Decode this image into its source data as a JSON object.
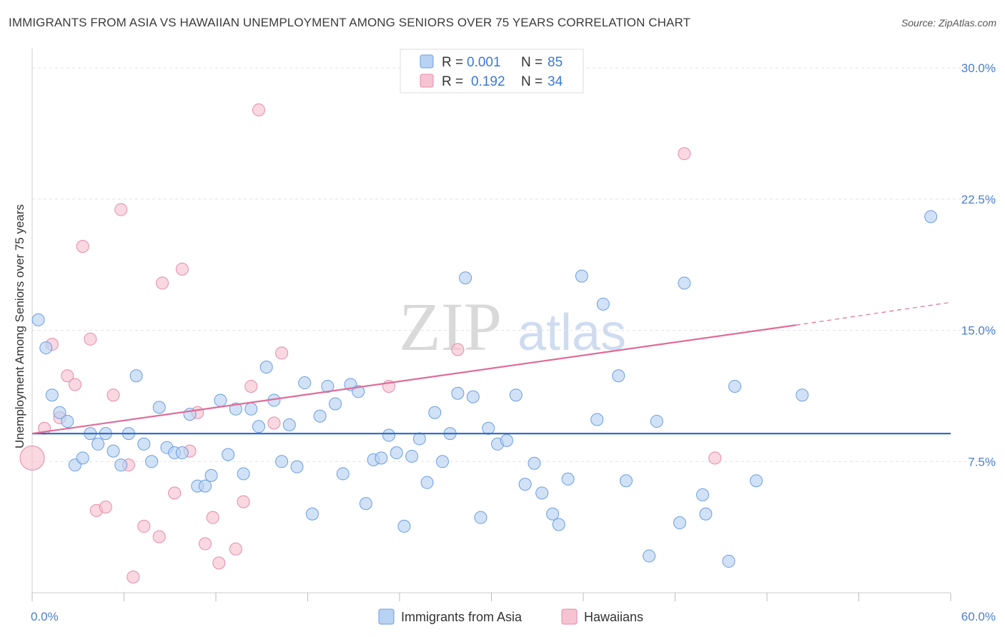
{
  "title": "IMMIGRANTS FROM ASIA VS HAWAIIAN UNEMPLOYMENT AMONG SENIORS OVER 75 YEARS CORRELATION CHART",
  "source": "Source: ZipAtlas.com",
  "watermark": {
    "zip": "ZIP",
    "atlas": "atlas"
  },
  "colors": {
    "blue_fill": "#b8d2f3",
    "blue_stroke": "#6b9de0",
    "blue_line": "#2f6fd0",
    "pink_fill": "#f6c3d3",
    "pink_stroke": "#e58aa9",
    "pink_line": "#e06b98",
    "tick_text": "#4a7fcf",
    "grid": "#e0e0e0"
  },
  "legend": {
    "row1": {
      "r_label": "R =",
      "r_value": "0.001",
      "n_label": "N =",
      "n_value": "85"
    },
    "row2": {
      "r_label": "R =",
      "r_value": "0.192",
      "n_label": "N =",
      "n_value": "34"
    }
  },
  "chart_data": {
    "type": "scatter",
    "title": "IMMIGRANTS FROM ASIA VS HAWAIIAN UNEMPLOYMENT AMONG SENIORS OVER 75 YEARS CORRELATION CHART",
    "xlabel": "",
    "ylabel": "Unemployment Among Seniors over 75 years",
    "xlim": [
      0,
      60
    ],
    "ylim": [
      0,
      30.7
    ],
    "x_tick_labels": [
      {
        "value": 0,
        "label": "0.0%"
      },
      {
        "value": 60,
        "label": "60.0%"
      }
    ],
    "y_tick_labels": [
      {
        "value": 7.5,
        "label": "7.5%"
      },
      {
        "value": 15.0,
        "label": "15.0%"
      },
      {
        "value": 22.5,
        "label": "22.5%"
      },
      {
        "value": 30.0,
        "label": "30.0%"
      }
    ],
    "x_minor_ticks": [
      0,
      6,
      12,
      18,
      24,
      30,
      36,
      42,
      48,
      54,
      60
    ],
    "legend_placement": "top-center",
    "series": [
      {
        "name": "Immigrants from Asia",
        "color": "blue",
        "R": 0.001,
        "N": 85,
        "trend": {
          "x0": 0,
          "y0": 9.1,
          "x1": 60,
          "y1": 9.1
        },
        "points": [
          [
            0.4,
            15.6
          ],
          [
            0.9,
            14.0
          ],
          [
            1.3,
            11.3
          ],
          [
            1.8,
            10.3
          ],
          [
            2.3,
            9.8
          ],
          [
            2.8,
            7.3
          ],
          [
            3.3,
            7.7
          ],
          [
            3.8,
            9.1
          ],
          [
            4.3,
            8.5
          ],
          [
            4.8,
            9.1
          ],
          [
            5.3,
            8.1
          ],
          [
            5.8,
            7.3
          ],
          [
            6.3,
            9.1
          ],
          [
            6.8,
            12.4
          ],
          [
            7.3,
            8.5
          ],
          [
            7.8,
            7.5
          ],
          [
            8.3,
            10.6
          ],
          [
            8.8,
            8.3
          ],
          [
            9.3,
            8.0
          ],
          [
            9.8,
            8.0
          ],
          [
            10.3,
            10.2
          ],
          [
            10.8,
            6.1
          ],
          [
            11.3,
            6.1
          ],
          [
            11.7,
            6.7
          ],
          [
            12.3,
            11.0
          ],
          [
            12.8,
            7.9
          ],
          [
            13.3,
            10.5
          ],
          [
            13.8,
            6.8
          ],
          [
            14.3,
            10.5
          ],
          [
            14.8,
            9.5
          ],
          [
            15.3,
            12.9
          ],
          [
            15.8,
            11.0
          ],
          [
            16.3,
            7.5
          ],
          [
            16.8,
            9.6
          ],
          [
            17.3,
            7.2
          ],
          [
            17.8,
            12.0
          ],
          [
            18.3,
            4.5
          ],
          [
            18.8,
            10.1
          ],
          [
            19.3,
            11.8
          ],
          [
            19.8,
            10.8
          ],
          [
            20.3,
            6.8
          ],
          [
            20.8,
            11.9
          ],
          [
            21.3,
            11.5
          ],
          [
            21.8,
            5.1
          ],
          [
            22.3,
            7.6
          ],
          [
            22.8,
            7.7
          ],
          [
            23.3,
            9.0
          ],
          [
            23.8,
            8.0
          ],
          [
            24.3,
            3.8
          ],
          [
            24.8,
            7.8
          ],
          [
            25.3,
            8.8
          ],
          [
            25.8,
            6.3
          ],
          [
            26.3,
            10.3
          ],
          [
            26.8,
            7.5
          ],
          [
            27.3,
            9.1
          ],
          [
            27.8,
            11.4
          ],
          [
            28.3,
            18.0
          ],
          [
            28.8,
            11.2
          ],
          [
            29.3,
            4.3
          ],
          [
            29.8,
            9.4
          ],
          [
            30.4,
            8.5
          ],
          [
            31.0,
            8.7
          ],
          [
            31.6,
            11.3
          ],
          [
            32.2,
            6.2
          ],
          [
            32.8,
            7.4
          ],
          [
            33.3,
            5.7
          ],
          [
            34.0,
            4.5
          ],
          [
            34.4,
            3.9
          ],
          [
            35.0,
            6.5
          ],
          [
            35.9,
            18.1
          ],
          [
            36.9,
            9.9
          ],
          [
            37.3,
            16.5
          ],
          [
            38.3,
            12.4
          ],
          [
            38.8,
            6.4
          ],
          [
            40.3,
            2.1
          ],
          [
            40.8,
            9.8
          ],
          [
            42.3,
            4.0
          ],
          [
            42.6,
            17.7
          ],
          [
            43.8,
            5.6
          ],
          [
            44.0,
            4.5
          ],
          [
            45.5,
            1.8
          ],
          [
            45.9,
            11.8
          ],
          [
            47.3,
            6.4
          ],
          [
            50.3,
            11.3
          ],
          [
            58.7,
            21.5
          ]
        ]
      },
      {
        "name": "Hawaiians",
        "color": "pink",
        "R": 0.192,
        "N": 34,
        "trend": {
          "x0": 0,
          "y0": 9.1,
          "x1": 49.9,
          "y1": 15.3,
          "dash_to_x": 60,
          "dash_to_y": 16.6
        },
        "points": [
          [
            0.0,
            7.7
          ],
          [
            0.8,
            9.4
          ],
          [
            1.3,
            14.2
          ],
          [
            1.8,
            10.0
          ],
          [
            2.3,
            12.4
          ],
          [
            2.8,
            11.9
          ],
          [
            3.3,
            19.8
          ],
          [
            3.8,
            14.5
          ],
          [
            4.2,
            4.7
          ],
          [
            4.8,
            4.9
          ],
          [
            5.3,
            11.3
          ],
          [
            5.8,
            21.9
          ],
          [
            6.3,
            7.3
          ],
          [
            6.6,
            0.9
          ],
          [
            7.3,
            3.8
          ],
          [
            8.3,
            3.2
          ],
          [
            8.5,
            17.7
          ],
          [
            9.3,
            5.7
          ],
          [
            9.8,
            18.5
          ],
          [
            10.3,
            8.1
          ],
          [
            10.8,
            10.3
          ],
          [
            11.3,
            2.8
          ],
          [
            11.8,
            4.3
          ],
          [
            12.2,
            1.7
          ],
          [
            13.3,
            2.5
          ],
          [
            13.8,
            5.2
          ],
          [
            14.3,
            11.8
          ],
          [
            14.8,
            27.6
          ],
          [
            15.8,
            9.7
          ],
          [
            16.3,
            13.7
          ],
          [
            23.3,
            11.8
          ],
          [
            27.8,
            13.9
          ],
          [
            42.6,
            25.1
          ],
          [
            44.6,
            7.7
          ]
        ]
      }
    ]
  },
  "bottom_legend": {
    "items": [
      {
        "label": "Immigrants from Asia"
      },
      {
        "label": "Hawaiians"
      }
    ]
  }
}
